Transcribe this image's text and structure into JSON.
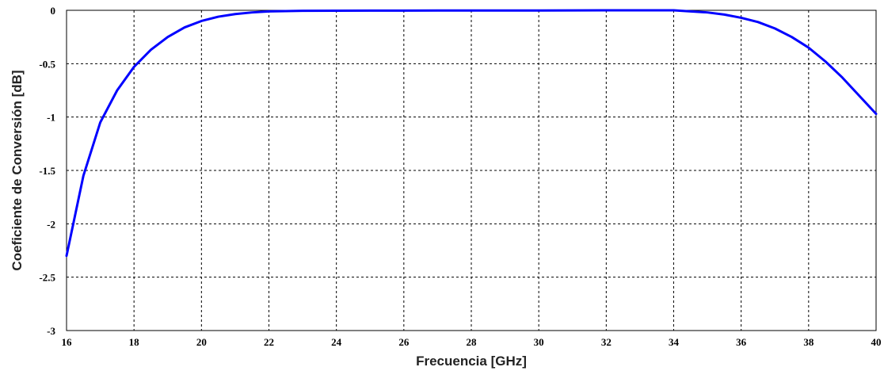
{
  "chart_data": {
    "type": "line",
    "title": "",
    "xlabel": "Frecuencia [GHz]",
    "ylabel": "Coeficiente de Conversión [dB]",
    "xlim": [
      16,
      40
    ],
    "ylim": [
      -3,
      0
    ],
    "xticks": [
      16,
      18,
      20,
      22,
      24,
      26,
      28,
      30,
      32,
      34,
      36,
      38,
      40
    ],
    "yticks": [
      0,
      -0.5,
      -1,
      -1.5,
      -2,
      -2.5,
      -3
    ],
    "ytick_labels": [
      "0",
      "-0.5",
      "-1",
      "-1.5",
      "-2",
      "-2.5",
      "-3"
    ],
    "grid": true,
    "series": [
      {
        "color": "#0000ff",
        "x": [
          16,
          16.5,
          17,
          17.5,
          18,
          18.5,
          19,
          19.5,
          20,
          20.5,
          21,
          21.5,
          22,
          23,
          24,
          25,
          26,
          27,
          28,
          29,
          30,
          31,
          32,
          33,
          34,
          34.5,
          35,
          35.5,
          36,
          36.5,
          37,
          37.5,
          38,
          38.5,
          39,
          39.5,
          40
        ],
        "y": [
          -2.3,
          -1.55,
          -1.05,
          -0.75,
          -0.53,
          -0.37,
          -0.25,
          -0.16,
          -0.1,
          -0.06,
          -0.035,
          -0.02,
          -0.01,
          -0.005,
          -0.004,
          -0.003,
          -0.003,
          -0.002,
          -0.002,
          -0.002,
          -0.002,
          -0.001,
          0,
          0,
          0,
          -0.01,
          -0.02,
          -0.04,
          -0.07,
          -0.11,
          -0.17,
          -0.25,
          -0.35,
          -0.48,
          -0.63,
          -0.8,
          -0.97
        ]
      }
    ]
  }
}
